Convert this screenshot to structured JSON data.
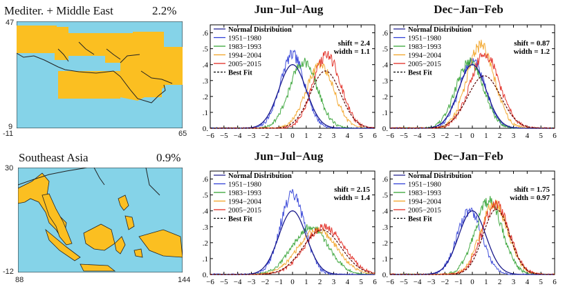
{
  "regions": [
    {
      "name": "Mediter. + Middle East",
      "percent": "2.2%",
      "map": {
        "lat_top": "47",
        "lat_bottom": "9",
        "lon_left": "-11",
        "lon_right": "65"
      }
    },
    {
      "name": "Southeast Asia",
      "percent": "0.9%",
      "map": {
        "lat_top": "30",
        "lat_bottom": "-12",
        "lon_left": "88",
        "lon_right": "144"
      }
    }
  ],
  "colors": {
    "ocean": "#85d3e8",
    "land": "#fbbf21",
    "border": "#222222"
  },
  "chart_data": [
    {
      "type": "line",
      "title": "Jun−Jul−Aug",
      "region": "Mediter. + Middle East",
      "xlim": [
        -6,
        6
      ],
      "ylim": [
        0,
        0.65
      ],
      "xticks": [
        -6,
        -5,
        -4,
        -3,
        -2,
        -1,
        0,
        1,
        2,
        3,
        4,
        5,
        6
      ],
      "yticks": [
        0,
        0.1,
        0.2,
        0.3,
        0.4,
        0.5,
        0.6
      ],
      "yticklabels": [
        "0.",
        ".1",
        ".2",
        ".3",
        ".4",
        ".5",
        ".6"
      ],
      "legend": [
        "Normal Distribution",
        "1951−1980",
        "1983−1993",
        "1994−2004",
        "2005−2015",
        "Best Fit"
      ],
      "legend_position": "top-left",
      "annotation": {
        "shift": "shift = 2.4",
        "width": "width = 1.1"
      },
      "series": [
        {
          "name": "1951−1980",
          "color": "#2b3bd6",
          "mean": 0,
          "sd": 0.9,
          "peak": 0.46
        },
        {
          "name": "1983−1993",
          "color": "#2ea02e",
          "mean": 0.8,
          "sd": 1.0,
          "peak": 0.42
        },
        {
          "name": "1994−2004",
          "color": "#f2a11f",
          "mean": 2.0,
          "sd": 1.0,
          "peak": 0.4
        },
        {
          "name": "2005−2015",
          "color": "#e0241b",
          "mean": 2.5,
          "sd": 1.0,
          "peak": 0.46
        }
      ],
      "normal": {
        "mean": 0,
        "sd": 1,
        "peak": 0.4
      },
      "best_fit": {
        "mean": 2.4,
        "sd": 1.1,
        "peak": 0.36
      }
    },
    {
      "type": "line",
      "title": "Dec−Jan−Feb",
      "region": "Mediter. + Middle East",
      "xlim": [
        -6,
        6
      ],
      "ylim": [
        0,
        0.65
      ],
      "xticks": [
        -6,
        -5,
        -4,
        -3,
        -2,
        -1,
        0,
        1,
        2,
        3,
        4,
        5,
        6
      ],
      "yticks": [
        0,
        0.1,
        0.2,
        0.3,
        0.4,
        0.5,
        0.6
      ],
      "yticklabels": [
        "0.",
        ".1",
        ".2",
        ".3",
        ".4",
        ".5",
        ".6"
      ],
      "legend": [
        "Normal Distribution",
        "1951−1980",
        "1983−1993",
        "1994−2004",
        "2005−2015",
        "Best Fit"
      ],
      "legend_position": "top-left",
      "annotation": {
        "shift": "shift = 0.87",
        "width": "width = 1.2"
      },
      "series": [
        {
          "name": "1951−1980",
          "color": "#2b3bd6",
          "mean": 0,
          "sd": 0.95,
          "peak": 0.42
        },
        {
          "name": "1983−1993",
          "color": "#2ea02e",
          "mean": -0.2,
          "sd": 1.0,
          "peak": 0.42
        },
        {
          "name": "1994−2004",
          "color": "#f2a11f",
          "mean": 0.6,
          "sd": 1.0,
          "peak": 0.52
        },
        {
          "name": "2005−2015",
          "color": "#e0241b",
          "mean": 0.9,
          "sd": 1.1,
          "peak": 0.46
        }
      ],
      "normal": {
        "mean": 0,
        "sd": 1,
        "peak": 0.4
      },
      "best_fit": {
        "mean": 0.87,
        "sd": 1.2,
        "peak": 0.33
      }
    },
    {
      "type": "line",
      "title": "Jun−Jul−Aug",
      "region": "Southeast Asia",
      "xlim": [
        -6,
        6
      ],
      "ylim": [
        0,
        0.65
      ],
      "xticks": [
        -6,
        -5,
        -4,
        -3,
        -2,
        -1,
        0,
        1,
        2,
        3,
        4,
        5,
        6
      ],
      "yticks": [
        0,
        0.1,
        0.2,
        0.3,
        0.4,
        0.5,
        0.6
      ],
      "yticklabels": [
        "0.",
        ".1",
        ".2",
        ".3",
        ".4",
        ".5",
        ".6"
      ],
      "legend": [
        "Normal Distribution",
        "1951−1980",
        "1983−1993",
        "1994−2004",
        "2005−2015",
        "Best Fit"
      ],
      "legend_position": "top-left",
      "annotation": {
        "shift": "shift = 2.15",
        "width": "width = 1.4"
      },
      "series": [
        {
          "name": "1951−1980",
          "color": "#2b3bd6",
          "mean": 0,
          "sd": 0.9,
          "peak": 0.5
        },
        {
          "name": "1983−1993",
          "color": "#2ea02e",
          "mean": 1.3,
          "sd": 1.3,
          "peak": 0.3
        },
        {
          "name": "1994−2004",
          "color": "#f2a11f",
          "mean": 1.8,
          "sd": 1.4,
          "peak": 0.28
        },
        {
          "name": "2005−2015",
          "color": "#e0241b",
          "mean": 2.3,
          "sd": 1.4,
          "peak": 0.3
        }
      ],
      "normal": {
        "mean": 0,
        "sd": 1,
        "peak": 0.4
      },
      "best_fit": {
        "mean": 2.15,
        "sd": 1.4,
        "peak": 0.28
      }
    },
    {
      "type": "line",
      "title": "Dec−Jan−Feb",
      "region": "Southeast Asia",
      "xlim": [
        -6,
        6
      ],
      "ylim": [
        0,
        0.65
      ],
      "xticks": [
        -6,
        -5,
        -4,
        -3,
        -2,
        -1,
        0,
        1,
        2,
        3,
        4,
        5,
        6
      ],
      "yticks": [
        0,
        0.1,
        0.2,
        0.3,
        0.4,
        0.5,
        0.6
      ],
      "yticklabels": [
        "0.",
        ".1",
        ".2",
        ".3",
        ".4",
        ".5",
        ".6"
      ],
      "legend": [
        "Normal Distribution",
        "1951−1980",
        "1983−1993",
        "1994−2004",
        "2005−2015",
        "Best Fit"
      ],
      "legend_position": "top-left",
      "annotation": {
        "shift": "shift = 1.75",
        "width": "width = 0.97"
      },
      "series": [
        {
          "name": "1951−1980",
          "color": "#2b3bd6",
          "mean": -0.2,
          "sd": 0.9,
          "peak": 0.4
        },
        {
          "name": "1983−1993",
          "color": "#2ea02e",
          "mean": 1.2,
          "sd": 1.0,
          "peak": 0.46
        },
        {
          "name": "1994−2004",
          "color": "#f2a11f",
          "mean": 1.6,
          "sd": 1.0,
          "peak": 0.45
        },
        {
          "name": "2005−2015",
          "color": "#e0241b",
          "mean": 1.7,
          "sd": 1.0,
          "peak": 0.44
        }
      ],
      "normal": {
        "mean": 0,
        "sd": 1,
        "peak": 0.4
      },
      "best_fit": {
        "mean": 1.75,
        "sd": 0.97,
        "peak": 0.41
      }
    }
  ]
}
